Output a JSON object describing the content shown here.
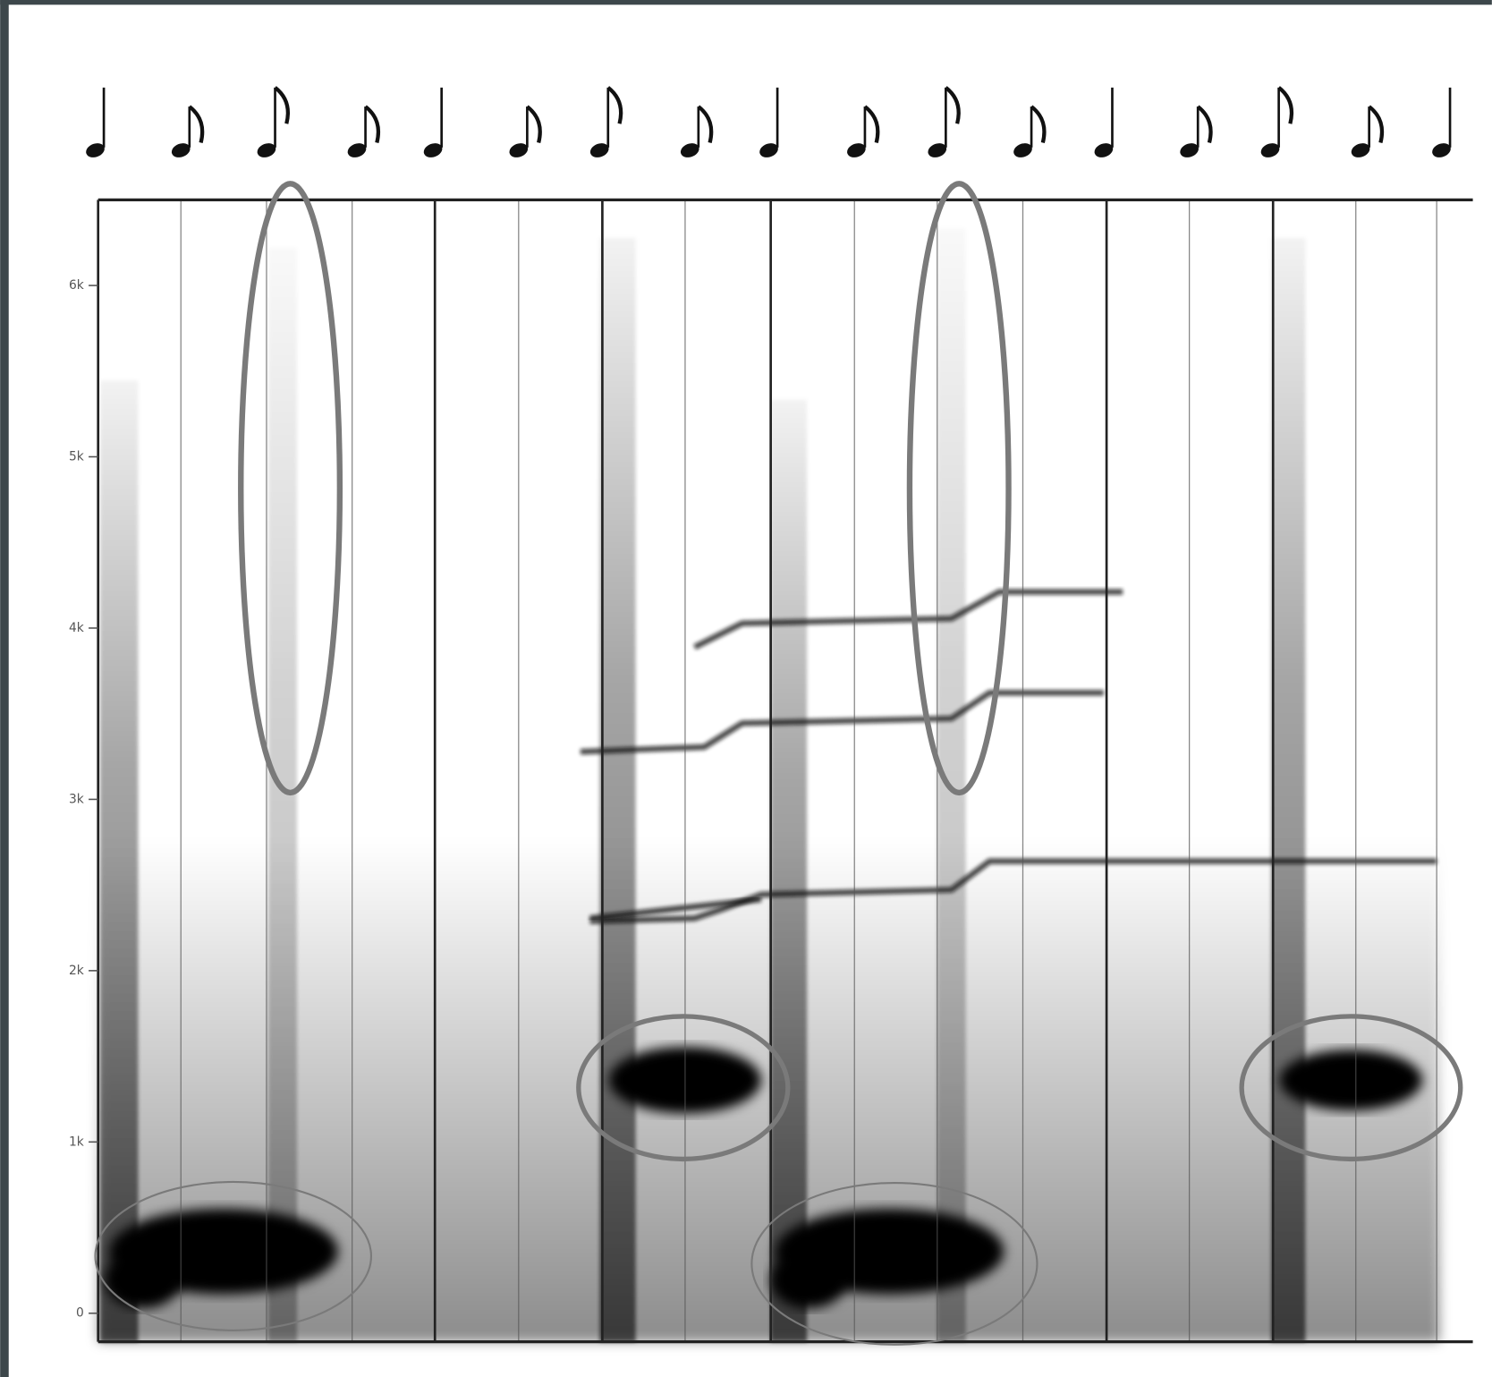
{
  "y_axis": {
    "labels": [
      "6k",
      "5k",
      "4k",
      "3k",
      "2k",
      "1k",
      "0"
    ]
  }
}
